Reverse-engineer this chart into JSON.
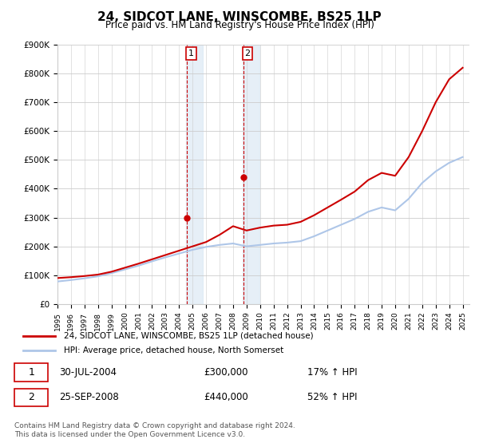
{
  "title": "24, SIDCOT LANE, WINSCOMBE, BS25 1LP",
  "subtitle": "Price paid vs. HM Land Registry's House Price Index (HPI)",
  "legend_line1": "24, SIDCOT LANE, WINSCOMBE, BS25 1LP (detached house)",
  "legend_line2": "HPI: Average price, detached house, North Somerset",
  "table_row1_num": "1",
  "table_row1_date": "30-JUL-2004",
  "table_row1_price": "£300,000",
  "table_row1_hpi": "17% ↑ HPI",
  "table_row2_num": "2",
  "table_row2_date": "25-SEP-2008",
  "table_row2_price": "£440,000",
  "table_row2_hpi": "52% ↑ HPI",
  "footnote1": "Contains HM Land Registry data © Crown copyright and database right 2024.",
  "footnote2": "This data is licensed under the Open Government Licence v3.0.",
  "hpi_color": "#aec6e8",
  "price_color": "#cc0000",
  "marker_color": "#cc0000",
  "vline_color": "#aec6e8",
  "shade_color": "#dce9f5",
  "ylim": [
    0,
    900000
  ],
  "yticks": [
    0,
    100000,
    200000,
    300000,
    400000,
    500000,
    600000,
    700000,
    800000,
    900000
  ],
  "xlabel_years": [
    "1995",
    "1996",
    "1997",
    "1998",
    "1999",
    "2000",
    "2001",
    "2002",
    "2003",
    "2004",
    "2005",
    "2006",
    "2007",
    "2008",
    "2009",
    "2010",
    "2011",
    "2012",
    "2013",
    "2014",
    "2015",
    "2016",
    "2017",
    "2018",
    "2019",
    "2020",
    "2021",
    "2022",
    "2023",
    "2024",
    "2025"
  ],
  "sale1_year": 2004.58,
  "sale1_price": 300000,
  "sale2_year": 2008.75,
  "sale2_price": 440000,
  "hpi_years": [
    1995,
    1996,
    1997,
    1998,
    1999,
    2000,
    2001,
    2002,
    2003,
    2004,
    2005,
    2006,
    2007,
    2008,
    2009,
    2010,
    2011,
    2012,
    2013,
    2014,
    2015,
    2016,
    2017,
    2018,
    2019,
    2020,
    2021,
    2022,
    2023,
    2024,
    2025
  ],
  "hpi_values": [
    78000,
    83000,
    89000,
    96000,
    107000,
    120000,
    133000,
    148000,
    162000,
    175000,
    188000,
    198000,
    205000,
    210000,
    200000,
    205000,
    210000,
    213000,
    218000,
    235000,
    255000,
    275000,
    295000,
    320000,
    335000,
    325000,
    365000,
    420000,
    460000,
    490000,
    510000
  ],
  "price_values": [
    90000,
    93000,
    97000,
    102000,
    112000,
    126000,
    140000,
    155000,
    170000,
    185000,
    200000,
    215000,
    240000,
    270000,
    255000,
    265000,
    272000,
    275000,
    285000,
    308000,
    335000,
    362000,
    390000,
    430000,
    455000,
    445000,
    510000,
    600000,
    700000,
    780000,
    820000
  ]
}
